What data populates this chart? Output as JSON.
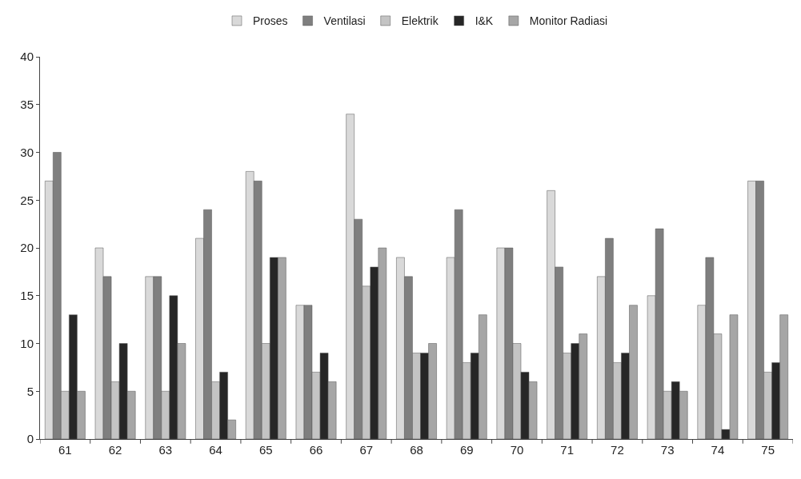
{
  "chart_data": {
    "type": "bar",
    "categories": [
      "61",
      "62",
      "63",
      "64",
      "65",
      "66",
      "67",
      "68",
      "69",
      "70",
      "71",
      "72",
      "73",
      "74",
      "75"
    ],
    "series": [
      {
        "name": "Proses",
        "color": "#d9d9d9",
        "values": [
          27,
          20,
          17,
          21,
          28,
          14,
          34,
          19,
          19,
          20,
          26,
          17,
          15,
          14,
          27
        ]
      },
      {
        "name": "Ventilasi",
        "color": "#7f7f7f",
        "values": [
          30,
          17,
          17,
          24,
          27,
          14,
          23,
          17,
          24,
          20,
          18,
          21,
          22,
          19,
          27
        ]
      },
      {
        "name": "Elektrik",
        "color": "#c4c4c4",
        "values": [
          5,
          6,
          5,
          6,
          10,
          7,
          16,
          9,
          8,
          10,
          9,
          8,
          5,
          11,
          7
        ]
      },
      {
        "name": "I&K",
        "color": "#262626",
        "values": [
          13,
          10,
          15,
          7,
          19,
          9,
          18,
          9,
          9,
          7,
          10,
          9,
          6,
          1,
          8
        ]
      },
      {
        "name": "Monitor Radiasi",
        "color": "#a6a6a6",
        "values": [
          5,
          5,
          10,
          2,
          19,
          6,
          20,
          10,
          13,
          6,
          11,
          14,
          5,
          13,
          13
        ]
      }
    ],
    "ylim": [
      0,
      40
    ],
    "yticks": [
      0,
      5,
      10,
      15,
      20,
      25,
      30,
      35,
      40
    ],
    "grid": false,
    "legend": "top"
  }
}
